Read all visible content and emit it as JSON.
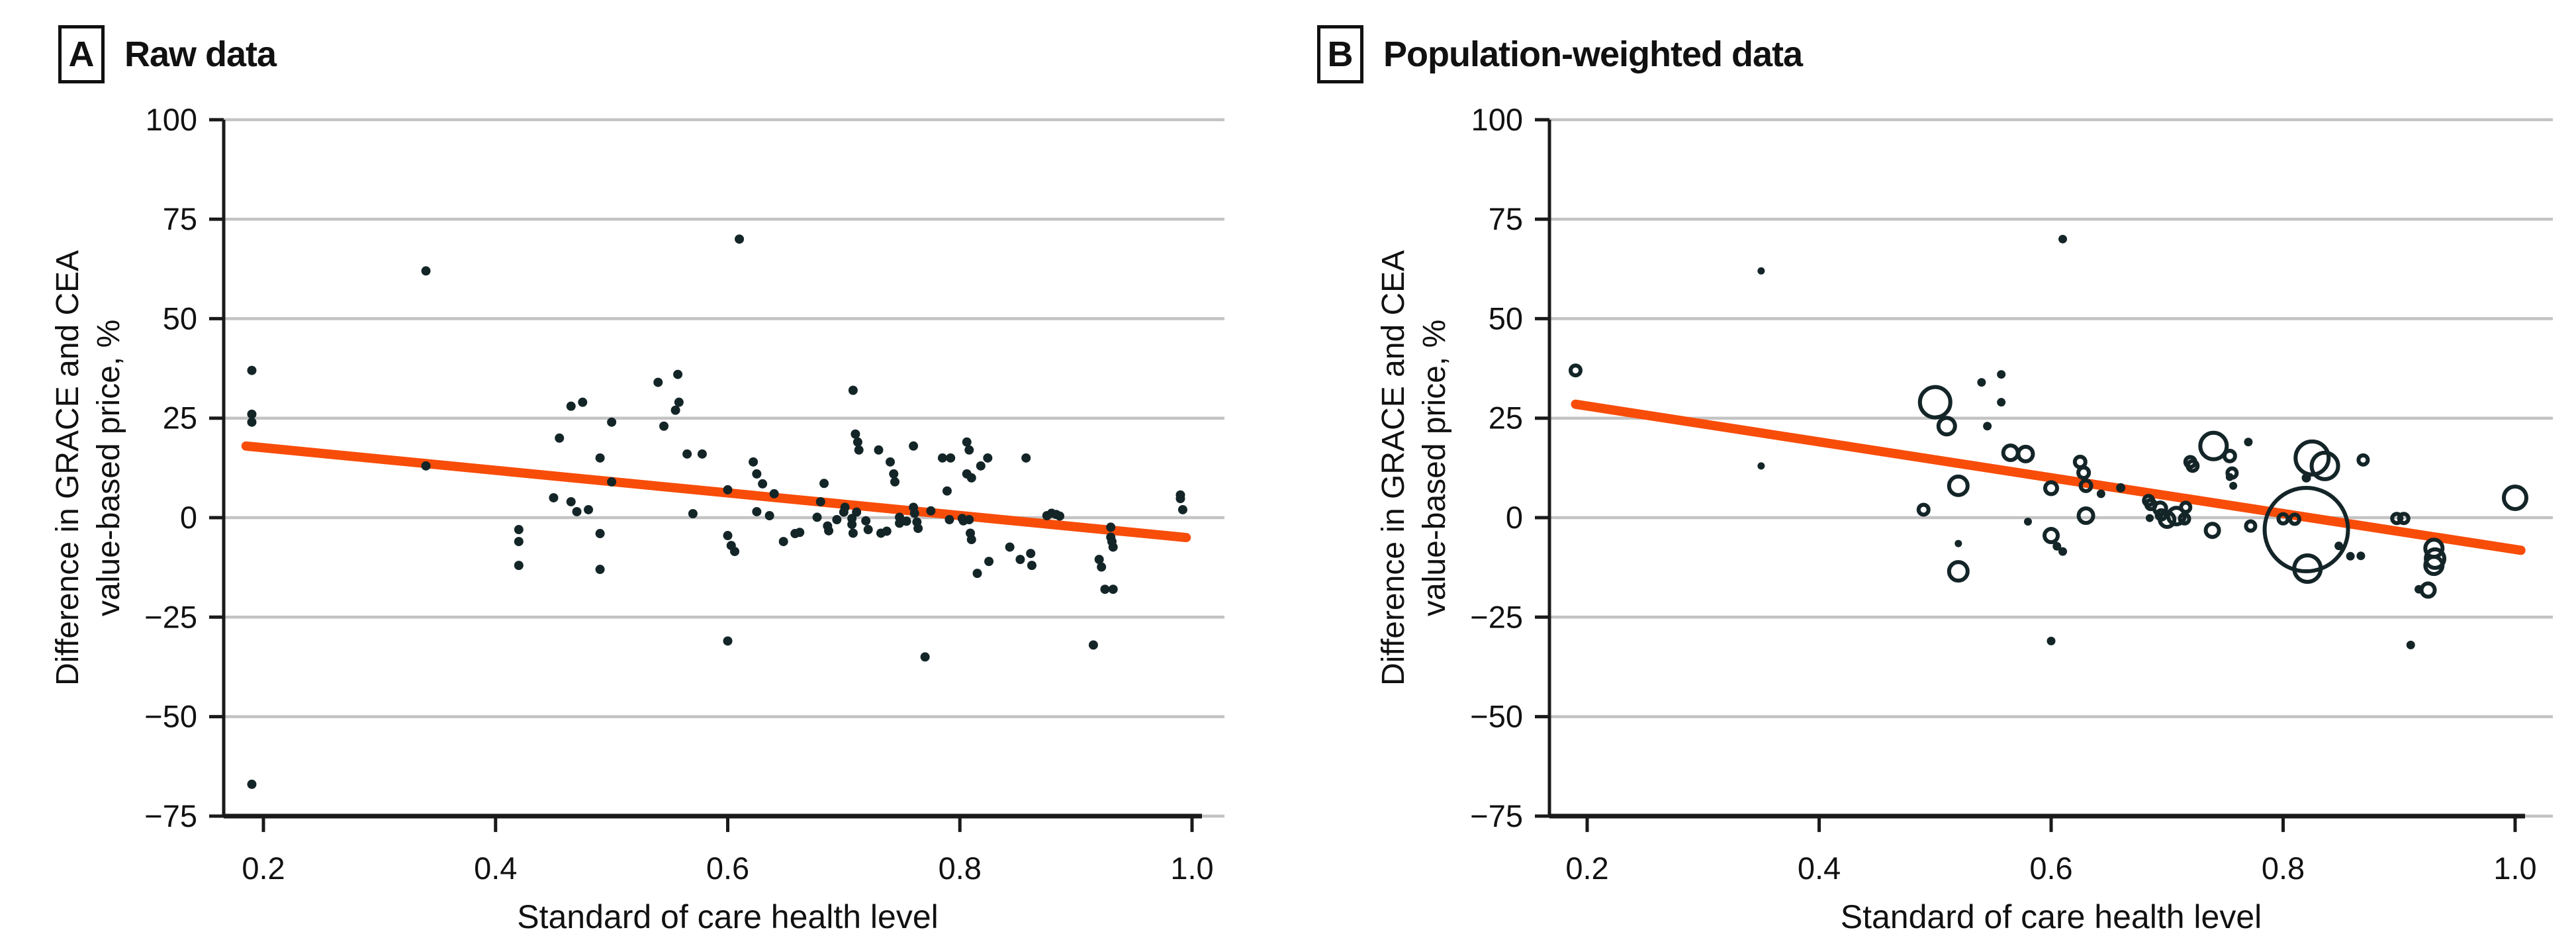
{
  "colors": {
    "accent_line": "#F84C09",
    "point": "#142528",
    "grid": "#C3C3C3",
    "axis": "#1A1A1A",
    "background": "#FFFFFF"
  },
  "panels": [
    {
      "panel_label": "A",
      "title": "Raw data",
      "y_axis_title_line1": "Difference in GRACE and CEA",
      "y_axis_title_line2": "value-based price, %",
      "x_axis_title": "Standard of care health level",
      "y_tick_labels": [
        "100",
        "75",
        "50",
        "25",
        "0",
        "−25",
        "−50",
        "−75"
      ],
      "x_tick_labels": [
        "0.2",
        "0.4",
        "0.6",
        "0.8",
        "1.0"
      ]
    },
    {
      "panel_label": "B",
      "title": "Population-weighted data",
      "y_axis_title_line1": "Difference in GRACE and CEA",
      "y_axis_title_line2": "value-based price, %",
      "x_axis_title": "Standard of care health level",
      "y_tick_labels": [
        "100",
        "75",
        "50",
        "25",
        "0",
        "−25",
        "−50",
        "−75"
      ],
      "x_tick_labels": [
        "0.2",
        "0.4",
        "0.6",
        "0.8",
        "1.0"
      ]
    }
  ],
  "chart_data": [
    {
      "type": "scatter",
      "panel": "A",
      "title": "Raw data",
      "xlabel": "Standard of care health level",
      "ylabel": "Difference in GRACE and CEA value-based price, %",
      "xlim": [
        0.155,
        1.03
      ],
      "ylim": [
        -75,
        100
      ],
      "xticks": [
        0.2,
        0.4,
        0.6,
        0.8,
        1.0
      ],
      "yticks": [
        100,
        75,
        50,
        25,
        0,
        -25,
        -50,
        -75
      ],
      "grid": "horizontal",
      "legend": "none",
      "marker": "filled-dot",
      "trendline": {
        "x": [
          0.185,
          0.995
        ],
        "y": [
          18,
          -5
        ]
      },
      "points": [
        [
          0.19,
          37
        ],
        [
          0.19,
          26
        ],
        [
          0.19,
          24
        ],
        [
          0.19,
          -67
        ],
        [
          0.34,
          62
        ],
        [
          0.34,
          13
        ],
        [
          0.42,
          -3
        ],
        [
          0.42,
          -6
        ],
        [
          0.42,
          -12
        ],
        [
          0.45,
          5
        ],
        [
          0.455,
          20
        ],
        [
          0.465,
          28
        ],
        [
          0.475,
          29
        ],
        [
          0.465,
          4
        ],
        [
          0.47,
          1.5
        ],
        [
          0.48,
          2
        ],
        [
          0.49,
          15
        ],
        [
          0.49,
          -4
        ],
        [
          0.49,
          -13
        ],
        [
          0.5,
          24
        ],
        [
          0.5,
          9
        ],
        [
          0.54,
          34
        ],
        [
          0.545,
          23
        ],
        [
          0.555,
          27
        ],
        [
          0.557,
          36
        ],
        [
          0.558,
          29
        ],
        [
          0.565,
          16
        ],
        [
          0.578,
          16
        ],
        [
          0.57,
          1
        ],
        [
          0.6,
          7
        ],
        [
          0.6,
          -4.5
        ],
        [
          0.603,
          -7
        ],
        [
          0.606,
          -8.5
        ],
        [
          0.6,
          -31
        ],
        [
          0.61,
          70
        ],
        [
          0.622,
          14
        ],
        [
          0.625,
          11
        ],
        [
          0.63,
          8.5
        ],
        [
          0.64,
          6
        ],
        [
          0.625,
          1.5
        ],
        [
          0.636,
          0.5
        ],
        [
          0.648,
          -6
        ],
        [
          0.658,
          -4
        ],
        [
          0.662,
          -3.7
        ],
        [
          0.683,
          8.6
        ],
        [
          0.68,
          4
        ],
        [
          0.677,
          0.1
        ],
        [
          0.686,
          -2.1
        ],
        [
          0.687,
          -3.3
        ],
        [
          0.694,
          -0.5
        ],
        [
          0.7,
          1.4
        ],
        [
          0.701,
          2.6
        ],
        [
          0.707,
          -0.2
        ],
        [
          0.707,
          -1.7
        ],
        [
          0.708,
          -3.9
        ],
        [
          0.708,
          32
        ],
        [
          0.71,
          21
        ],
        [
          0.711,
          1.4
        ],
        [
          0.712,
          19
        ],
        [
          0.713,
          17
        ],
        [
          0.719,
          -0.8
        ],
        [
          0.721,
          -3
        ],
        [
          0.73,
          17
        ],
        [
          0.732,
          -3.9
        ],
        [
          0.737,
          -3.4
        ],
        [
          0.74,
          14
        ],
        [
          0.743,
          11
        ],
        [
          0.744,
          9
        ],
        [
          0.748,
          0.1
        ],
        [
          0.748,
          -1.4
        ],
        [
          0.754,
          -0.9
        ],
        [
          0.76,
          18
        ],
        [
          0.76,
          2.6
        ],
        [
          0.761,
          1.1
        ],
        [
          0.763,
          -1.1
        ],
        [
          0.764,
          -2.7
        ],
        [
          0.77,
          -35
        ],
        [
          0.775,
          1.7
        ],
        [
          0.785,
          15
        ],
        [
          0.789,
          6.7
        ],
        [
          0.791,
          -0.5
        ],
        [
          0.792,
          15
        ],
        [
          0.802,
          -0.2
        ],
        [
          0.803,
          -0.8
        ],
        [
          0.806,
          19
        ],
        [
          0.806,
          11
        ],
        [
          0.808,
          17
        ],
        [
          0.808,
          -0.5
        ],
        [
          0.809,
          -3.9
        ],
        [
          0.81,
          10
        ],
        [
          0.81,
          -5.5
        ],
        [
          0.815,
          -14
        ],
        [
          0.818,
          13
        ],
        [
          0.824,
          15
        ],
        [
          0.825,
          -11
        ],
        [
          0.843,
          -7.4
        ],
        [
          0.852,
          -10.5
        ],
        [
          0.857,
          15
        ],
        [
          0.861,
          -9
        ],
        [
          0.862,
          -12
        ],
        [
          0.875,
          0.5
        ],
        [
          0.879,
          1.1
        ],
        [
          0.883,
          0.8
        ],
        [
          0.886,
          0.4
        ],
        [
          0.915,
          -32
        ],
        [
          0.92,
          -10.5
        ],
        [
          0.922,
          -12.4
        ],
        [
          0.925,
          -18
        ],
        [
          0.932,
          -18
        ],
        [
          0.93,
          -2.4
        ],
        [
          0.93,
          -4.9
        ],
        [
          0.931,
          -6
        ],
        [
          0.932,
          -7.4
        ],
        [
          0.99,
          5.7
        ],
        [
          0.99,
          4.8
        ],
        [
          0.992,
          2
        ]
      ]
    },
    {
      "type": "scatter",
      "panel": "B",
      "title": "Population-weighted data",
      "xlabel": "Standard of care health level",
      "ylabel": "Difference in GRACE and CEA value-based price, %",
      "xlim": [
        0.155,
        1.03
      ],
      "ylim": [
        -75,
        100
      ],
      "xticks": [
        0.2,
        0.4,
        0.6,
        0.8,
        1.0
      ],
      "yticks": [
        100,
        75,
        50,
        25,
        0,
        -25,
        -50,
        -75
      ],
      "grid": "horizontal",
      "legend": "none",
      "marker": "bubble (area = population weight)",
      "trendline": {
        "x": [
          0.19,
          1.005
        ],
        "y": [
          28.5,
          -8.2
        ]
      },
      "points": [
        {
          "x": 0.19,
          "y": 37,
          "r": 7.5,
          "style": "open"
        },
        {
          "x": 0.35,
          "y": 62,
          "r": 5.5,
          "style": "filled"
        },
        {
          "x": 0.35,
          "y": 13,
          "r": 5.5,
          "style": "filled"
        },
        {
          "x": 0.5,
          "y": 29,
          "r": 23,
          "style": "open"
        },
        {
          "x": 0.51,
          "y": 23,
          "r": 12.5,
          "style": "open"
        },
        {
          "x": 0.52,
          "y": 8,
          "r": 14,
          "style": "open"
        },
        {
          "x": 0.49,
          "y": 2,
          "r": 7.5,
          "style": "open"
        },
        {
          "x": 0.52,
          "y": -6.5,
          "r": 5.5,
          "style": "filled"
        },
        {
          "x": 0.52,
          "y": -13.5,
          "r": 14,
          "style": "open"
        },
        {
          "x": 0.54,
          "y": 34,
          "r": 6.5,
          "style": "filled"
        },
        {
          "x": 0.557,
          "y": 36,
          "r": 6.5,
          "style": "filled"
        },
        {
          "x": 0.557,
          "y": 29,
          "r": 6.5,
          "style": "filled"
        },
        {
          "x": 0.545,
          "y": 23,
          "r": 6.5,
          "style": "filled"
        },
        {
          "x": 0.565,
          "y": 16.3,
          "r": 11,
          "style": "open"
        },
        {
          "x": 0.578,
          "y": 16,
          "r": 11,
          "style": "open"
        },
        {
          "x": 0.58,
          "y": -1,
          "r": 6,
          "style": "filled"
        },
        {
          "x": 0.6,
          "y": 7.4,
          "r": 9,
          "style": "open"
        },
        {
          "x": 0.6,
          "y": -4.5,
          "r": 10,
          "style": "open"
        },
        {
          "x": 0.605,
          "y": -7.2,
          "r": 6.5,
          "style": "filled"
        },
        {
          "x": 0.61,
          "y": -8.5,
          "r": 6.5,
          "style": "filled"
        },
        {
          "x": 0.6,
          "y": -31,
          "r": 6.5,
          "style": "filled"
        },
        {
          "x": 0.61,
          "y": 70,
          "r": 6.5,
          "style": "filled"
        },
        {
          "x": 0.625,
          "y": 14,
          "r": 8,
          "style": "open"
        },
        {
          "x": 0.628,
          "y": 11.3,
          "r": 8,
          "style": "open"
        },
        {
          "x": 0.63,
          "y": 8,
          "r": 8,
          "style": "open"
        },
        {
          "x": 0.63,
          "y": 0.5,
          "r": 11,
          "style": "open"
        },
        {
          "x": 0.643,
          "y": 6,
          "r": 6.5,
          "style": "filled"
        },
        {
          "x": 0.66,
          "y": 7.5,
          "r": 7,
          "style": "filled"
        },
        {
          "x": 0.684,
          "y": 4.3,
          "r": 7,
          "style": "open"
        },
        {
          "x": 0.686,
          "y": 3.3,
          "r": 7,
          "style": "open"
        },
        {
          "x": 0.694,
          "y": 2.3,
          "r": 9,
          "style": "open"
        },
        {
          "x": 0.695,
          "y": 0.7,
          "r": 7,
          "style": "open"
        },
        {
          "x": 0.685,
          "y": -0.1,
          "r": 6,
          "style": "filled"
        },
        {
          "x": 0.7,
          "y": -0.5,
          "r": 11,
          "style": "open"
        },
        {
          "x": 0.708,
          "y": 0.4,
          "r": 12.5,
          "style": "open"
        },
        {
          "x": 0.715,
          "y": -0.3,
          "r": 7,
          "style": "open"
        },
        {
          "x": 0.716,
          "y": 2.6,
          "r": 7,
          "style": "open"
        },
        {
          "x": 0.72,
          "y": 14,
          "r": 7.5,
          "style": "open"
        },
        {
          "x": 0.722,
          "y": 13,
          "r": 7.5,
          "style": "open"
        },
        {
          "x": 0.74,
          "y": 18,
          "r": 20,
          "style": "open"
        },
        {
          "x": 0.754,
          "y": 15.5,
          "r": 8,
          "style": "open"
        },
        {
          "x": 0.756,
          "y": 11.2,
          "r": 7,
          "style": "open"
        },
        {
          "x": 0.754,
          "y": 10.2,
          "r": 6,
          "style": "filled"
        },
        {
          "x": 0.757,
          "y": 8,
          "r": 6,
          "style": "filled"
        },
        {
          "x": 0.77,
          "y": 19,
          "r": 6.5,
          "style": "filled"
        },
        {
          "x": 0.739,
          "y": -3.2,
          "r": 10,
          "style": "open"
        },
        {
          "x": 0.772,
          "y": -2.1,
          "r": 7,
          "style": "open"
        },
        {
          "x": 0.8,
          "y": -0.3,
          "r": 7,
          "style": "open"
        },
        {
          "x": 0.81,
          "y": -0.4,
          "r": 7,
          "style": "open"
        },
        {
          "x": 0.82,
          "y": -3,
          "r": 63,
          "style": "open"
        },
        {
          "x": 0.825,
          "y": 15,
          "r": 25,
          "style": "open"
        },
        {
          "x": 0.836,
          "y": 13,
          "r": 20,
          "style": "open"
        },
        {
          "x": 0.82,
          "y": 10,
          "r": 7,
          "style": "filled"
        },
        {
          "x": 0.821,
          "y": -12.8,
          "r": 20,
          "style": "open"
        },
        {
          "x": 0.848,
          "y": -7.1,
          "r": 6.5,
          "style": "filled"
        },
        {
          "x": 0.858,
          "y": -9.7,
          "r": 6.5,
          "style": "filled"
        },
        {
          "x": 0.867,
          "y": -9.6,
          "r": 6.5,
          "style": "filled"
        },
        {
          "x": 0.869,
          "y": 14.5,
          "r": 7,
          "style": "open"
        },
        {
          "x": 0.898,
          "y": -0.2,
          "r": 7,
          "style": "open"
        },
        {
          "x": 0.904,
          "y": -0.2,
          "r": 7,
          "style": "open"
        },
        {
          "x": 0.93,
          "y": -7.7,
          "r": 13,
          "style": "open"
        },
        {
          "x": 0.931,
          "y": -10.3,
          "r": 14,
          "style": "open"
        },
        {
          "x": 0.93,
          "y": -12,
          "r": 13,
          "style": "open"
        },
        {
          "x": 0.925,
          "y": -18.2,
          "r": 10,
          "style": "open"
        },
        {
          "x": 0.917,
          "y": -18,
          "r": 6.5,
          "style": "filled"
        },
        {
          "x": 0.91,
          "y": -32,
          "r": 6.5,
          "style": "filled"
        },
        {
          "x": 1.0,
          "y": 5,
          "r": 17,
          "style": "open"
        }
      ]
    }
  ]
}
